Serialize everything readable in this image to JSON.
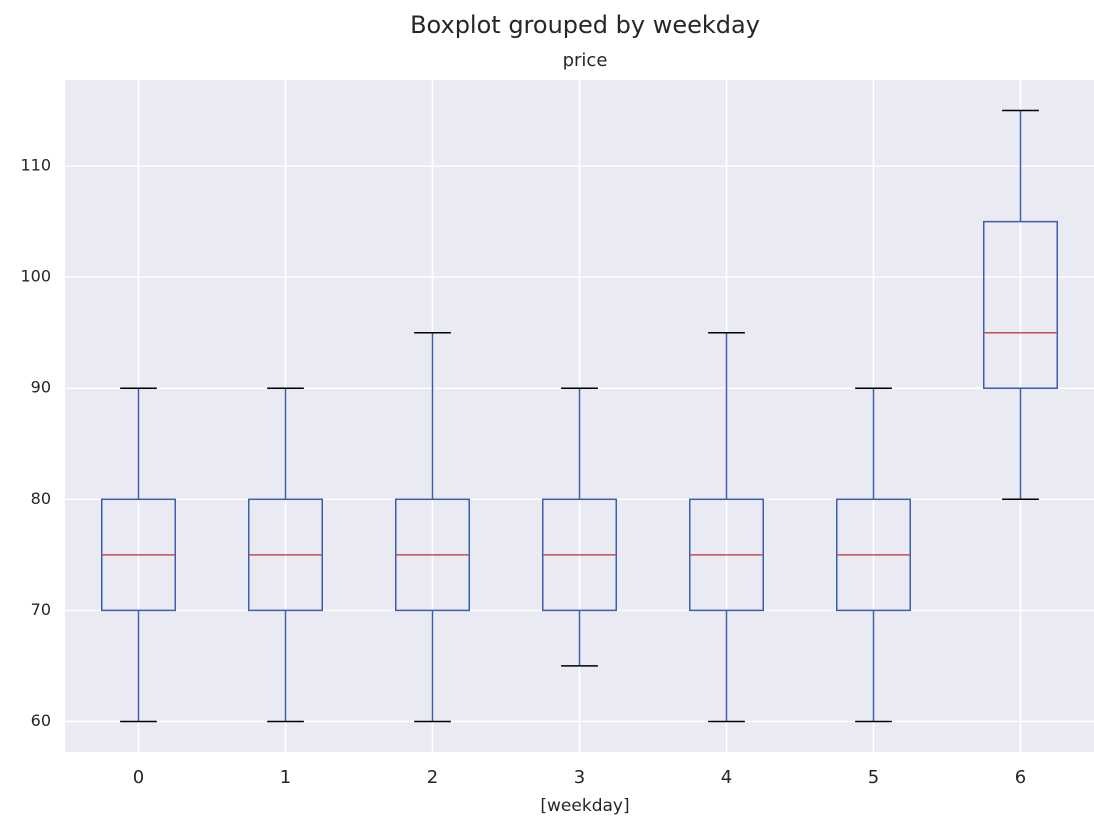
{
  "chart_data": {
    "type": "box",
    "title": "Boxplot grouped by weekday",
    "subtitle": "price",
    "x_label": "[weekday]",
    "categories": [
      "0",
      "1",
      "2",
      "3",
      "4",
      "5",
      "6"
    ],
    "boxes": [
      {
        "whislo": 60,
        "q1": 70,
        "med": 75,
        "q3": 80,
        "whishi": 90
      },
      {
        "whislo": 60,
        "q1": 70,
        "med": 75,
        "q3": 80,
        "whishi": 90
      },
      {
        "whislo": 60,
        "q1": 70,
        "med": 75,
        "q3": 80,
        "whishi": 95
      },
      {
        "whislo": 65,
        "q1": 70,
        "med": 75,
        "q3": 80,
        "whishi": 90
      },
      {
        "whislo": 60,
        "q1": 70,
        "med": 75,
        "q3": 80,
        "whishi": 95
      },
      {
        "whislo": 60,
        "q1": 70,
        "med": 75,
        "q3": 80,
        "whishi": 90
      },
      {
        "whislo": 80,
        "q1": 90,
        "med": 95,
        "q3": 105,
        "whishi": 115
      }
    ],
    "color": "#3b5fae",
    "median_color": "#c44e52",
    "cap_color": "#000000",
    "ylim": [
      57.25,
      117.75
    ],
    "yticks": [
      60,
      70,
      80,
      90,
      100,
      110
    ],
    "grid": true
  }
}
